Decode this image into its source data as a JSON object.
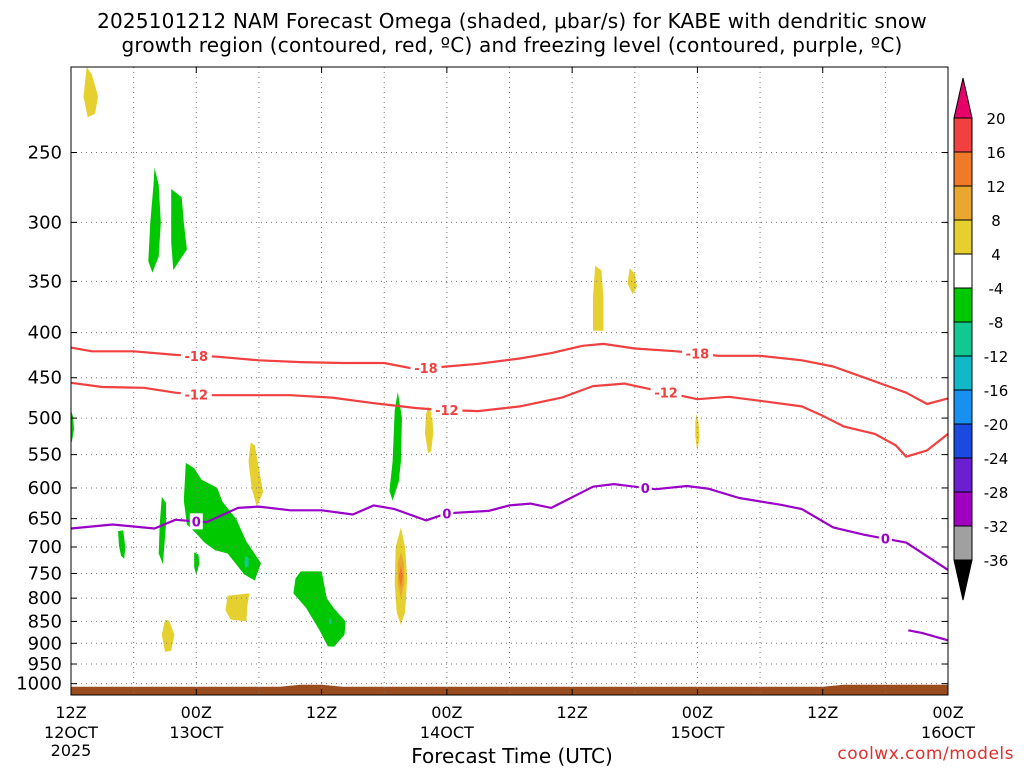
{
  "title": {
    "line1": "2025101212 NAM Forecast Omega (shaded, μbar/s) for KABE with dendritic snow",
    "line2": "growth region (contoured, red, ºC) and freezing level (contoured, purple, ºC)"
  },
  "xlabel": "Forecast Time (UTC)",
  "credit": "coolwx.com/models",
  "chart_data": {
    "type": "time-height cross section",
    "x_axis": {
      "range_hours": [
        0,
        84
      ],
      "ticks": [
        {
          "hour": 0,
          "label": "12Z",
          "date": "12OCT",
          "year": "2025"
        },
        {
          "hour": 12,
          "label": "00Z",
          "date": "13OCT"
        },
        {
          "hour": 24,
          "label": "12Z"
        },
        {
          "hour": 36,
          "label": "00Z",
          "date": "14OCT"
        },
        {
          "hour": 48,
          "label": "12Z"
        },
        {
          "hour": 60,
          "label": "00Z",
          "date": "15OCT"
        },
        {
          "hour": 72,
          "label": "12Z"
        },
        {
          "hour": 84,
          "label": "00Z",
          "date": "16OCT"
        }
      ],
      "gridlines_every_hours": 6
    },
    "y_axis": {
      "type": "pressure",
      "range_mb": [
        1030,
        200
      ],
      "ticks": [
        250,
        300,
        350,
        400,
        450,
        500,
        550,
        600,
        650,
        700,
        750,
        800,
        850,
        900,
        950,
        1000
      ]
    },
    "grid": true,
    "colorbar": {
      "label_values": [
        20,
        16,
        12,
        8,
        4,
        -4,
        -8,
        -12,
        -16,
        -20,
        -24,
        -28,
        -32,
        -36
      ],
      "bins": [
        {
          "color": "#e8006a"
        },
        {
          "color": "#f04040"
        },
        {
          "color": "#f07a28"
        },
        {
          "color": "#e8a830"
        },
        {
          "color": "#e6d030"
        },
        {
          "color": "#ffffff"
        },
        {
          "color": "#00c800"
        },
        {
          "color": "#10c890"
        },
        {
          "color": "#10b8c8"
        },
        {
          "color": "#1890f0"
        },
        {
          "color": "#1a4ae0"
        },
        {
          "color": "#6a20d0"
        },
        {
          "color": "#a000c0"
        },
        {
          "color": "#a0a0a0"
        },
        {
          "color": "#000000"
        }
      ]
    },
    "contours": [
      {
        "label": "-18",
        "color": "#f04040",
        "label_at_hours": [
          12,
          34,
          60
        ],
        "points": [
          [
            0,
            416
          ],
          [
            2,
            420
          ],
          [
            6,
            420
          ],
          [
            10,
            424
          ],
          [
            14,
            426
          ],
          [
            18,
            430
          ],
          [
            22,
            432
          ],
          [
            26,
            433
          ],
          [
            30,
            433
          ],
          [
            33,
            440
          ],
          [
            35,
            438
          ],
          [
            39,
            434
          ],
          [
            43,
            428
          ],
          [
            46,
            422
          ],
          [
            49,
            414
          ],
          [
            51,
            412
          ],
          [
            54,
            417
          ],
          [
            58,
            420
          ],
          [
            62,
            425
          ],
          [
            66,
            425
          ],
          [
            70,
            430
          ],
          [
            73,
            437
          ],
          [
            76,
            450
          ],
          [
            80,
            468
          ],
          [
            82,
            482
          ],
          [
            84,
            475
          ]
        ]
      },
      {
        "label": "-12",
        "color": "#f04040",
        "label_at_hours": [
          12,
          36,
          57
        ],
        "points": [
          [
            0,
            456
          ],
          [
            3,
            461
          ],
          [
            7,
            462
          ],
          [
            10,
            468
          ],
          [
            13,
            471
          ],
          [
            17,
            471
          ],
          [
            21,
            471
          ],
          [
            25,
            474
          ],
          [
            29,
            481
          ],
          [
            33,
            487
          ],
          [
            35,
            489
          ],
          [
            39,
            491
          ],
          [
            43,
            485
          ],
          [
            47,
            474
          ],
          [
            50,
            460
          ],
          [
            53,
            457
          ],
          [
            56,
            465
          ],
          [
            60,
            476
          ],
          [
            63,
            473
          ],
          [
            66,
            478
          ],
          [
            70,
            485
          ],
          [
            72,
            497
          ],
          [
            74,
            511
          ],
          [
            77,
            521
          ],
          [
            79,
            537
          ],
          [
            80,
            553
          ],
          [
            82,
            544
          ],
          [
            84,
            521
          ]
        ]
      },
      {
        "label": "0",
        "color": "#9a00c8",
        "label_at_hours": [
          12,
          36,
          55,
          78
        ],
        "points": [
          [
            0,
            667
          ],
          [
            4,
            660
          ],
          [
            8,
            667
          ],
          [
            10,
            652
          ],
          [
            13,
            656
          ],
          [
            16,
            632
          ],
          [
            18,
            630
          ],
          [
            21,
            636
          ],
          [
            24,
            636
          ],
          [
            27,
            643
          ],
          [
            29,
            628
          ],
          [
            31,
            634
          ],
          [
            34,
            653
          ],
          [
            36,
            641
          ],
          [
            40,
            637
          ],
          [
            42,
            628
          ],
          [
            44,
            625
          ],
          [
            46,
            632
          ],
          [
            50,
            598
          ],
          [
            52,
            594
          ],
          [
            56,
            602
          ],
          [
            59,
            597
          ],
          [
            61,
            601
          ],
          [
            64,
            616
          ],
          [
            68,
            627
          ],
          [
            70,
            634
          ],
          [
            73,
            665
          ],
          [
            76,
            678
          ],
          [
            80,
            692
          ],
          [
            84,
            743
          ]
        ]
      },
      {
        "label": "",
        "color": "#9a00c8",
        "label_at_hours": [],
        "points": [
          [
            80.2,
            870
          ],
          [
            81.5,
            876
          ],
          [
            84,
            893
          ]
        ]
      }
    ],
    "shaded_regions": [
      {
        "bin": "4 to 8",
        "color": "#e6d030",
        "polygon": [
          [
            1.5,
            200
          ],
          [
            2.0,
            204
          ],
          [
            2.6,
            216
          ],
          [
            2.3,
            226
          ],
          [
            1.6,
            228
          ],
          [
            1.2,
            216
          ]
        ]
      },
      {
        "bin": "-4 to -8",
        "color": "#00c800",
        "polygon": [
          [
            8.0,
            260
          ],
          [
            8.4,
            272
          ],
          [
            8.6,
            300
          ],
          [
            8.4,
            328
          ],
          [
            7.8,
            342
          ],
          [
            7.4,
            332
          ],
          [
            7.6,
            300
          ],
          [
            7.9,
            272
          ]
        ]
      },
      {
        "bin": "-4 to -8",
        "color": "#00c800",
        "polygon": [
          [
            9.6,
            275
          ],
          [
            10.6,
            281
          ],
          [
            10.8,
            300
          ],
          [
            11.1,
            322
          ],
          [
            10.5,
            330
          ],
          [
            9.8,
            340
          ],
          [
            9.6,
            316
          ]
        ]
      },
      {
        "bin": "-4 to -8",
        "color": "#00c800",
        "polygon": [
          [
            0.0,
            490
          ],
          [
            0.2,
            498
          ],
          [
            0.3,
            515
          ],
          [
            0.1,
            531
          ],
          [
            0.0,
            534
          ]
        ]
      },
      {
        "bin": "4 to 8",
        "color": "#e6d030",
        "polygon": [
          [
            17.2,
            533
          ],
          [
            17.6,
            537
          ],
          [
            18.0,
            570
          ],
          [
            18.4,
            607
          ],
          [
            17.8,
            630
          ],
          [
            17.3,
            600
          ],
          [
            17.0,
            560
          ]
        ]
      },
      {
        "bin": "-4 to -8",
        "color": "#00c800",
        "polygon": [
          [
            11.0,
            562
          ],
          [
            11.8,
            570
          ],
          [
            12.5,
            587
          ],
          [
            14.0,
            600
          ],
          [
            14.5,
            622
          ],
          [
            15.8,
            650
          ],
          [
            16.8,
            690
          ],
          [
            18.2,
            730
          ],
          [
            17.6,
            764
          ],
          [
            16.6,
            752
          ],
          [
            15.0,
            712
          ],
          [
            13.8,
            706
          ],
          [
            12.8,
            692
          ],
          [
            12.0,
            676
          ],
          [
            11.1,
            660
          ],
          [
            10.8,
            620
          ]
        ]
      },
      {
        "bin": "-8 to -12",
        "color": "#10c890",
        "polygon": [
          [
            16.7,
            716
          ],
          [
            17.0,
            720
          ],
          [
            17.0,
            736
          ],
          [
            16.7,
            740
          ],
          [
            16.6,
            728
          ]
        ]
      },
      {
        "bin": "-4 to -8",
        "color": "#00c800",
        "polygon": [
          [
            8.7,
            614
          ],
          [
            9.1,
            624
          ],
          [
            9.1,
            660
          ],
          [
            8.8,
            732
          ],
          [
            8.4,
            712
          ],
          [
            8.5,
            660
          ]
        ]
      },
      {
        "bin": "-4 to -8",
        "color": "#00c800",
        "polygon": [
          [
            4.5,
            672
          ],
          [
            5.0,
            670
          ],
          [
            5.2,
            700
          ],
          [
            5.1,
            722
          ],
          [
            4.8,
            716
          ],
          [
            4.6,
            698
          ]
        ]
      },
      {
        "bin": "-4 to -8",
        "color": "#00c800",
        "polygon": [
          [
            11.8,
            710
          ],
          [
            12.2,
            714
          ],
          [
            12.3,
            730
          ],
          [
            12.0,
            754
          ],
          [
            11.8,
            738
          ]
        ]
      },
      {
        "bin": "4 to 8",
        "color": "#e6d030",
        "polygon": [
          [
            15.0,
            795
          ],
          [
            17.1,
            790
          ],
          [
            16.9,
            815
          ],
          [
            16.8,
            850
          ],
          [
            15.3,
            846
          ],
          [
            14.8,
            826
          ]
        ]
      },
      {
        "bin": "4 to 8",
        "color": "#e6d030",
        "polygon": [
          [
            9.0,
            847
          ],
          [
            9.4,
            848
          ],
          [
            9.9,
            880
          ],
          [
            9.6,
            918
          ],
          [
            9.0,
            920
          ],
          [
            8.7,
            880
          ]
        ]
      },
      {
        "bin": "-4 to -8",
        "color": "#00c800",
        "polygon": [
          [
            22.0,
            746
          ],
          [
            24.0,
            746
          ],
          [
            24.5,
            800
          ],
          [
            25.2,
            822
          ],
          [
            26.3,
            850
          ],
          [
            26.2,
            880
          ],
          [
            25.2,
            908
          ],
          [
            24.6,
            907
          ],
          [
            23.8,
            870
          ],
          [
            22.5,
            820
          ],
          [
            21.3,
            790
          ],
          [
            21.5,
            760
          ]
        ]
      },
      {
        "bin": "-8 to -12",
        "color": "#10c890",
        "polygon": [
          [
            24.8,
            842
          ],
          [
            25.0,
            848
          ],
          [
            24.9,
            858
          ],
          [
            24.7,
            852
          ]
        ]
      },
      {
        "bin": "-4 to -8",
        "color": "#00c800",
        "polygon": [
          [
            31.3,
            467
          ],
          [
            31.7,
            500
          ],
          [
            31.6,
            560
          ],
          [
            31.4,
            590
          ],
          [
            30.8,
            620
          ],
          [
            30.5,
            605
          ],
          [
            30.8,
            560
          ],
          [
            31.0,
            490
          ]
        ]
      },
      {
        "bin": "4 to 8",
        "color": "#e6d030",
        "polygon": [
          [
            31.6,
            665
          ],
          [
            32.0,
            700
          ],
          [
            32.2,
            760
          ],
          [
            32.0,
            830
          ],
          [
            31.6,
            858
          ],
          [
            31.2,
            830
          ],
          [
            31.0,
            770
          ],
          [
            31.1,
            700
          ]
        ]
      },
      {
        "bin": "8 to 12",
        "color": "#e8a830",
        "polygon": [
          [
            31.6,
            710
          ],
          [
            31.9,
            730
          ],
          [
            31.9,
            770
          ],
          [
            31.6,
            800
          ],
          [
            31.3,
            770
          ],
          [
            31.3,
            730
          ]
        ]
      },
      {
        "bin": "12 to 16",
        "color": "#f07a28",
        "polygon": [
          [
            31.6,
            735
          ],
          [
            31.8,
            755
          ],
          [
            31.6,
            778
          ],
          [
            31.4,
            755
          ]
        ]
      },
      {
        "bin": "4 to 8",
        "color": "#e6d030",
        "polygon": [
          [
            34.2,
            485
          ],
          [
            34.6,
            495
          ],
          [
            34.7,
            520
          ],
          [
            34.5,
            545
          ],
          [
            34.2,
            548
          ],
          [
            33.9,
            520
          ],
          [
            34.0,
            495
          ]
        ]
      },
      {
        "bin": "4 to 8",
        "color": "#e6d030",
        "polygon": [
          [
            50.2,
            336
          ],
          [
            50.8,
            340
          ],
          [
            51.0,
            365
          ],
          [
            51.0,
            398
          ],
          [
            50.0,
            398
          ],
          [
            50.0,
            365
          ]
        ]
      },
      {
        "bin": "4 to 8",
        "color": "#e6d030",
        "polygon": [
          [
            53.5,
            338
          ],
          [
            54.0,
            343
          ],
          [
            54.2,
            355
          ],
          [
            53.8,
            362
          ],
          [
            53.3,
            352
          ]
        ]
      },
      {
        "bin": "4 to 8",
        "color": "#e6d030",
        "polygon": [
          [
            59.9,
            495
          ],
          [
            60.1,
            505
          ],
          [
            60.2,
            525
          ],
          [
            60.0,
            546
          ],
          [
            59.8,
            525
          ],
          [
            59.8,
            505
          ]
        ]
      }
    ],
    "terrain": {
      "color": "#9a4c1f",
      "top_mb_points": [
        [
          0,
          1008
        ],
        [
          10,
          1008
        ],
        [
          20,
          1008
        ],
        [
          22,
          1003
        ],
        [
          24,
          1003
        ],
        [
          26,
          1008
        ],
        [
          40,
          1008
        ],
        [
          60,
          1008
        ],
        [
          72,
          1008
        ],
        [
          74,
          1003
        ],
        [
          84,
          1003
        ]
      ]
    }
  }
}
